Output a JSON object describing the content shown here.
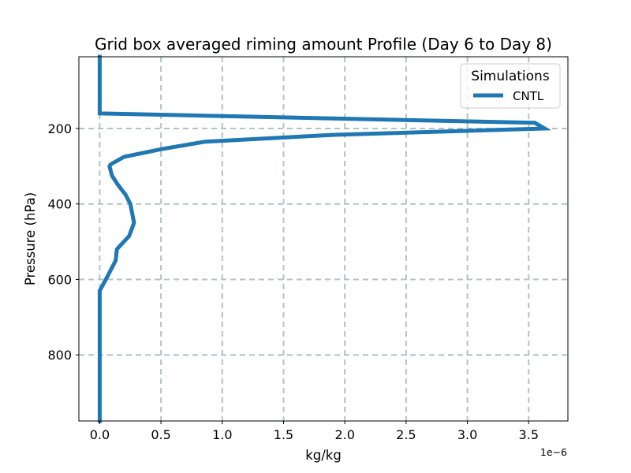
{
  "chart_data": {
    "type": "line",
    "title": "Grid box averaged riming amount Profile (Day 6 to Day 8)",
    "xlabel": "kg/kg",
    "ylabel": "Pressure (hPa)",
    "x_offset_text": "1e−6",
    "xlim": [
      -1.7e-07,
      3.82e-06
    ],
    "ylim": [
      975,
      10
    ],
    "y_inverted": true,
    "xticks": [
      0,
      5e-07,
      1e-06,
      1.5e-06,
      2e-06,
      2.5e-06,
      3e-06,
      3.5e-06
    ],
    "xtick_labels": [
      "0.0",
      "0.5",
      "1.0",
      "1.5",
      "2.0",
      "2.5",
      "3.0",
      "3.5"
    ],
    "yticks": [
      200,
      400,
      600,
      800
    ],
    "ytick_labels": [
      "200",
      "400",
      "600",
      "800"
    ],
    "grid": true,
    "legend": {
      "title": "Simulations",
      "placement": "top-right"
    },
    "series": [
      {
        "name": "CNTL",
        "color": "#1f77b4",
        "points": [
          [
            0,
            10
          ],
          [
            0,
            50
          ],
          [
            0,
            100
          ],
          [
            0,
            125
          ],
          [
            0,
            150
          ],
          [
            0,
            160
          ],
          [
            3.55e-06,
            185
          ],
          [
            3.63e-06,
            200
          ],
          [
            1.9e-06,
            217
          ],
          [
            8.6e-07,
            235
          ],
          [
            5e-07,
            255
          ],
          [
            2e-07,
            275
          ],
          [
            9e-08,
            295
          ],
          [
            8e-08,
            300
          ],
          [
            1e-07,
            325
          ],
          [
            1.5e-07,
            350
          ],
          [
            2.1e-07,
            375
          ],
          [
            2.5e-07,
            400
          ],
          [
            2.8e-07,
            450
          ],
          [
            2.4e-07,
            485
          ],
          [
            1.4e-07,
            520
          ],
          [
            1.3e-07,
            550
          ],
          [
            5e-08,
            600
          ],
          [
            0,
            630
          ],
          [
            0,
            700
          ],
          [
            0,
            800
          ],
          [
            0,
            900
          ],
          [
            0,
            975
          ]
        ]
      }
    ]
  }
}
